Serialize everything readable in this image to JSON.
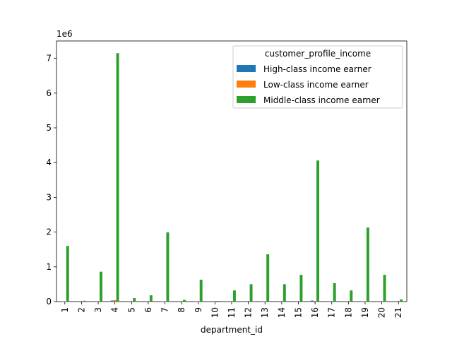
{
  "chart_data": {
    "type": "bar",
    "xlabel": "department_id",
    "ylabel": "",
    "y_scale_label": "1e6",
    "y_scale": 1000000,
    "ylim": [
      0,
      7.5
    ],
    "yticks": [
      0,
      1,
      2,
      3,
      4,
      5,
      6,
      7
    ],
    "grid": false,
    "categories": [
      "1",
      "2",
      "3",
      "4",
      "5",
      "6",
      "7",
      "8",
      "9",
      "10",
      "11",
      "12",
      "13",
      "14",
      "15",
      "16",
      "17",
      "18",
      "19",
      "20",
      "21"
    ],
    "legend": {
      "title": "customer_profile_income",
      "placement": "top-right"
    },
    "series": [
      {
        "name": "High-class income earner",
        "color": "#1f77b4",
        "values": [
          0.008,
          0.0005,
          0.004,
          0.03,
          0.0005,
          0.001,
          0.01,
          0.0005,
          0.003,
          0.0005,
          0.001,
          0.002,
          0.006,
          0.002,
          0.003,
          0.03,
          0.002,
          0.001,
          0.01,
          0.003,
          0.0005
        ]
      },
      {
        "name": "Low-class income earner",
        "color": "#ff7f0e",
        "values": [
          0.01,
          0.001,
          0.004,
          0.04,
          0.001,
          0.002,
          0.012,
          0.001,
          0.005,
          0.001,
          0.003,
          0.004,
          0.008,
          0.004,
          0.005,
          0.02,
          0.004,
          0.002,
          0.012,
          0.004,
          0.001
        ]
      },
      {
        "name": "Middle-class income earner",
        "color": "#2ca02c",
        "values": [
          1.6,
          0.025,
          0.86,
          7.15,
          0.1,
          0.18,
          1.99,
          0.05,
          0.63,
          0.02,
          0.32,
          0.5,
          1.36,
          0.5,
          0.77,
          4.06,
          0.53,
          0.32,
          2.13,
          0.77,
          0.06
        ]
      }
    ]
  }
}
